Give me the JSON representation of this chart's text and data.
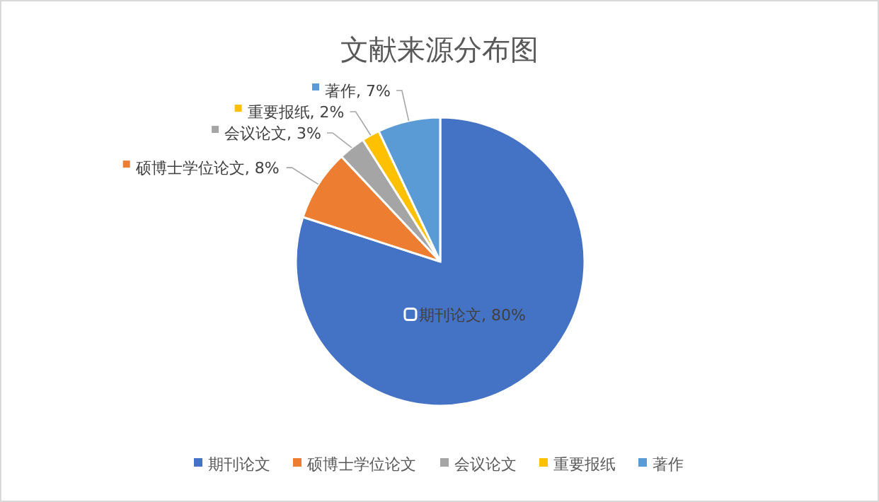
{
  "chart_data": {
    "type": "pie",
    "title": "文献来源分布图",
    "categories": [
      "期刊论文",
      "硕博士学位论文",
      "会议论文",
      "重要报纸",
      "著作"
    ],
    "values": [
      80,
      8,
      3,
      2,
      7
    ],
    "colors": [
      "#4472c4",
      "#ed7d31",
      "#a5a5a5",
      "#ffc000",
      "#5b9bd5"
    ],
    "value_labels": [
      "期刊论文, 80%",
      "硕博士学位论文, 8%",
      "会议论文, 3%",
      "重要报纸, 2%",
      "著作, 7%"
    ],
    "legend": "bottom"
  }
}
